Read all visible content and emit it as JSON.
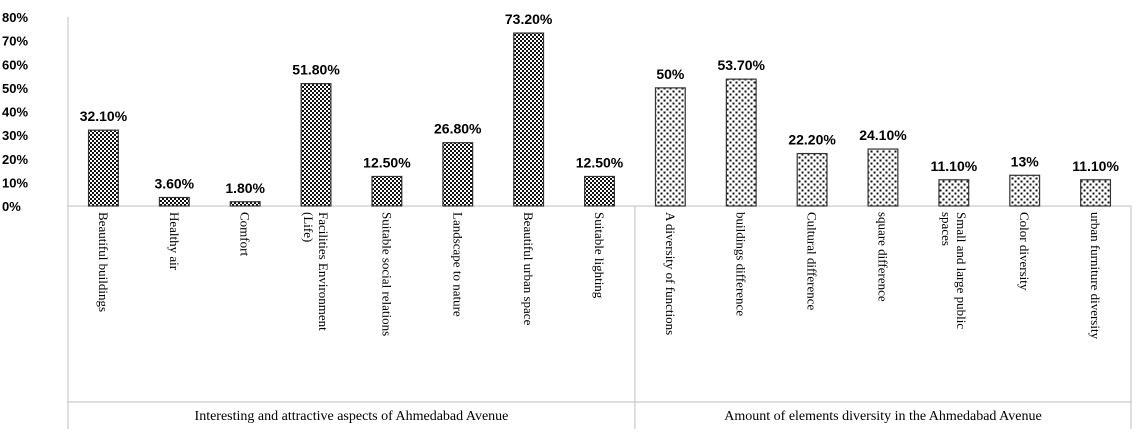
{
  "chart_data": {
    "type": "bar",
    "ylim": [
      0,
      80
    ],
    "yticks": [
      0,
      10,
      20,
      30,
      40,
      50,
      60,
      70,
      80
    ],
    "ytick_labels": [
      "0%",
      "10%",
      "20%",
      "30%",
      "40%",
      "50%",
      "60%",
      "70%",
      "80%"
    ],
    "grid": false,
    "groups": [
      {
        "label": "Interesting and attractive aspects of Ahmedabad Avenue",
        "pattern": "checker",
        "categories": [
          [
            "Beautiful buildings"
          ],
          [
            "Healthy air"
          ],
          [
            "Comfort"
          ],
          [
            "Facilities Environment",
            "(Life)"
          ],
          [
            "Suitable social relations"
          ],
          [
            "Landscape to nature"
          ],
          [
            "Beautiful urban space"
          ],
          [
            "Suitable lighting"
          ]
        ],
        "values": [
          32.1,
          3.6,
          1.8,
          51.8,
          12.5,
          26.8,
          73.2,
          12.5
        ],
        "value_labels": [
          "32.10%",
          "3.60%",
          "1.80%",
          "51.80%",
          "12.50%",
          "26.80%",
          "73.20%",
          "12.50%"
        ]
      },
      {
        "label": "Amount of elements diversity in the Ahmedabad Avenue",
        "pattern": "dots",
        "categories": [
          [
            "A diversity of functions"
          ],
          [
            "buildings difference"
          ],
          [
            "Cultural difference"
          ],
          [
            "square difference"
          ],
          [
            "Small and large public",
            "spaces"
          ],
          [
            "Color diversity"
          ],
          [
            "urban furniture diversity"
          ]
        ],
        "values": [
          50,
          53.7,
          22.2,
          24.1,
          11.1,
          13,
          11.1
        ],
        "value_labels": [
          "50%",
          "53.70%",
          "22.20%",
          "24.10%",
          "11.10%",
          "13%",
          "11.10%"
        ]
      }
    ]
  }
}
